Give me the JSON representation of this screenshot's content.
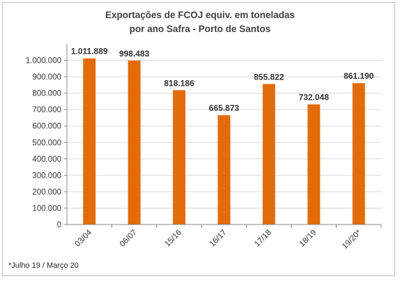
{
  "chart_data": {
    "type": "bar",
    "title": [
      "Exportações  de FCOJ equiv. em toneladas",
      "por ano Safra - Porto de Santos"
    ],
    "categories": [
      "03/04",
      "06/07",
      "15/16",
      "16/17",
      "17/18",
      "18/19",
      "19/20*"
    ],
    "values": [
      1011889,
      998483,
      818186,
      665873,
      855822,
      732048,
      861190
    ],
    "data_labels": [
      "1.011.889",
      "998.483",
      "818.186",
      "665.873",
      "855.822",
      "732.048",
      "861.190"
    ],
    "ylim": [
      0,
      1100000
    ],
    "yticks": [
      0,
      100000,
      200000,
      300000,
      400000,
      500000,
      600000,
      700000,
      800000,
      900000,
      1000000
    ],
    "ytick_labels": [
      "0",
      "100.000",
      "200.000",
      "300.000",
      "400.000",
      "500.000",
      "600.000",
      "700.000",
      "800.000",
      "900.000",
      "1.000.000"
    ],
    "bar_color": "#e36c09",
    "grid": true,
    "gridline_color": "#d9d9d9",
    "legend": "none"
  },
  "footnote": "*Julho 19 / Março 20"
}
